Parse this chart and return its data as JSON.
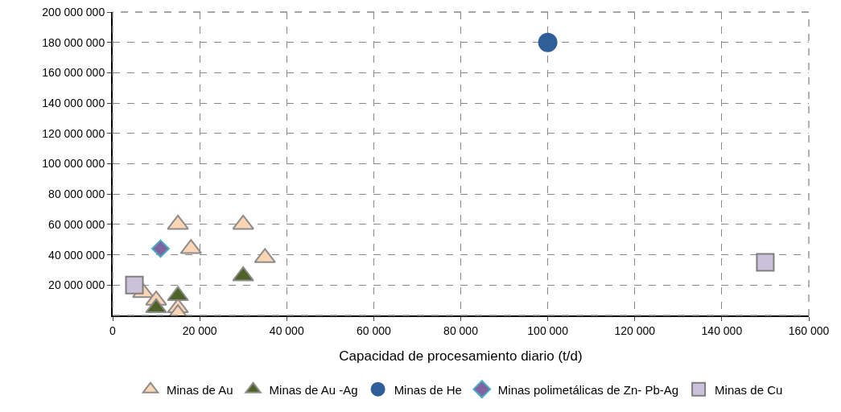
{
  "chart_data": {
    "type": "scatter",
    "xlabel": "Capacidad de procesamiento diario (t/d)",
    "xlim": [
      0,
      160000
    ],
    "ylim": [
      0,
      200000000
    ],
    "xticks": [
      0,
      {
        "value": 20000,
        "label": "20 000"
      },
      {
        "value": 40000,
        "label": "40 000"
      },
      {
        "value": 60000,
        "label": "60 000"
      },
      {
        "value": 80000,
        "label": "80 000"
      },
      {
        "value": 100000,
        "label": "100 000"
      },
      {
        "value": 120000,
        "label": "120 000"
      },
      {
        "value": 140000,
        "label": "140 000"
      },
      {
        "value": 160000,
        "label": "160 000"
      }
    ],
    "yticks": [
      {
        "value": 20000000,
        "label": "20 000 000"
      },
      {
        "value": 40000000,
        "label": "40 000 000"
      },
      {
        "value": 60000000,
        "label": "60 000 000"
      },
      {
        "value": 80000000,
        "label": "80 000 000"
      },
      {
        "value": 100000000,
        "label": "100 000 000"
      },
      {
        "value": 120000000,
        "label": "120 000 000"
      },
      {
        "value": 140000000,
        "label": "140 000 000"
      },
      {
        "value": 160000000,
        "label": "160 000 000"
      },
      {
        "value": 180000000,
        "label": "180 000 000"
      },
      {
        "value": 200000000,
        "label": "200 000 000"
      }
    ],
    "grid": true,
    "legend": "bottom",
    "series": [
      {
        "name": "Minas de Au",
        "color": "#fcd5b4",
        "marker": "triangle",
        "x": [
          15000,
          30000,
          18000,
          35000,
          7000,
          10000,
          15000,
          15000
        ],
        "values": [
          60000000,
          60000000,
          44000000,
          38000000,
          15000000,
          10000000,
          5000000,
          1000000
        ]
      },
      {
        "name": "Minas de Au -Ag",
        "color": "#4f6228",
        "marker": "triangle",
        "x": [
          10000,
          15000,
          30000
        ],
        "values": [
          5000000,
          13000000,
          26000000
        ]
      },
      {
        "name": "Minas de He",
        "color": "#2f5f98",
        "marker": "circle",
        "x": [
          100000
        ],
        "values": [
          180000000
        ]
      },
      {
        "name": "Minas polimetálicas de Zn- Pb-Ag",
        "color": "#8064a2",
        "marker": "diamond",
        "x": [
          11000
        ],
        "values": [
          44000000
        ]
      },
      {
        "name": "Minas de Cu",
        "color": "#ccc0da",
        "marker": "square",
        "x": [
          5000,
          150000
        ],
        "values": [
          20000000,
          35000000
        ]
      }
    ]
  }
}
